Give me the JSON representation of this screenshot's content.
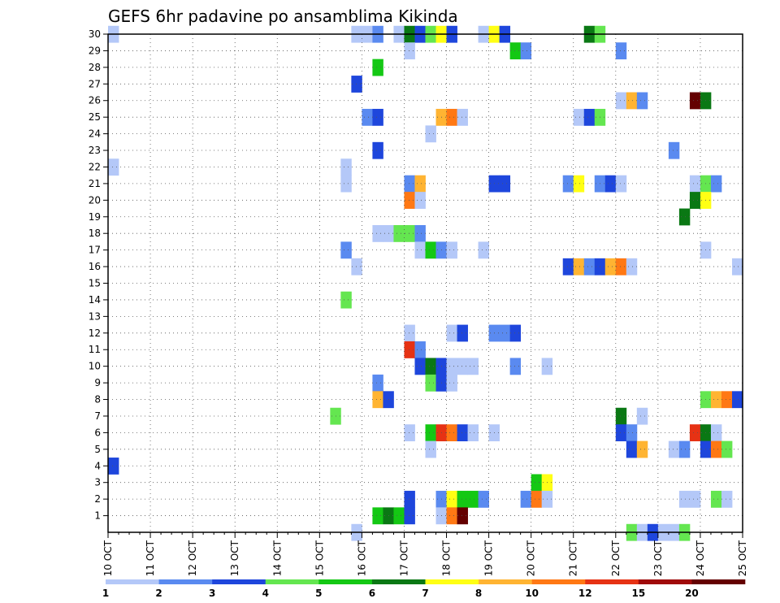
{
  "chart_data": {
    "type": "heatmap",
    "title": "GEFS 6hr padavine po ansamblima Kikinda",
    "x_tick_labels": [
      "10 OCT",
      "11 OCT",
      "12 OCT",
      "13 OCT",
      "14 OCT",
      "15 OCT",
      "16 OCT",
      "17 OCT",
      "18 OCT",
      "19 OCT",
      "20 OCT",
      "21 OCT",
      "22 OCT",
      "23 OCT",
      "24 OCT",
      "25 OCT"
    ],
    "y_tick_labels": [
      "1",
      "2",
      "3",
      "4",
      "5",
      "6",
      "7",
      "8",
      "9",
      "10",
      "11",
      "12",
      "13",
      "14",
      "15",
      "16",
      "17",
      "18",
      "19",
      "20",
      "21",
      "22",
      "23",
      "24",
      "25",
      "26",
      "27",
      "28",
      "29",
      "30"
    ],
    "ylim": [
      0,
      30
    ],
    "grid": true,
    "time_steps_per_day": 4,
    "colorbar": {
      "labels": [
        "1",
        "2",
        "3",
        "4",
        "5",
        "6",
        "7",
        "8",
        "10",
        "12",
        "15",
        "20"
      ],
      "colors": [
        "#b4c8f8",
        "#5a8af0",
        "#1e46dc",
        "#64e650",
        "#14c814",
        "#0a7814",
        "#ffff14",
        "#ffb432",
        "#ff7814",
        "#e63214",
        "#a00a0a",
        "#640000"
      ]
    },
    "cells": [
      {
        "member": 30,
        "col": 0,
        "lvl": 0
      },
      {
        "member": 30,
        "col": 23,
        "lvl": 0
      },
      {
        "member": 30,
        "col": 24,
        "lvl": 0
      },
      {
        "member": 30,
        "col": 25,
        "lvl": 1
      },
      {
        "member": 30,
        "col": 27,
        "lvl": 0
      },
      {
        "member": 30,
        "col": 28,
        "lvl": 5
      },
      {
        "member": 30,
        "col": 29,
        "lvl": 2
      },
      {
        "member": 30,
        "col": 30,
        "lvl": 3
      },
      {
        "member": 30,
        "col": 31,
        "lvl": 6
      },
      {
        "member": 30,
        "col": 32,
        "lvl": 2
      },
      {
        "member": 30,
        "col": 35,
        "lvl": 0
      },
      {
        "member": 30,
        "col": 36,
        "lvl": 6
      },
      {
        "member": 30,
        "col": 37,
        "lvl": 2
      },
      {
        "member": 30,
        "col": 45,
        "lvl": 5
      },
      {
        "member": 30,
        "col": 46,
        "lvl": 3
      },
      {
        "member": 29,
        "col": 28,
        "lvl": 0
      },
      {
        "member": 29,
        "col": 38,
        "lvl": 4
      },
      {
        "member": 29,
        "col": 39,
        "lvl": 1
      },
      {
        "member": 29,
        "col": 48,
        "lvl": 1
      },
      {
        "member": 28,
        "col": 25,
        "lvl": 4
      },
      {
        "member": 27,
        "col": 23,
        "lvl": 2
      },
      {
        "member": 26,
        "col": 48,
        "lvl": 0
      },
      {
        "member": 26,
        "col": 49,
        "lvl": 7
      },
      {
        "member": 26,
        "col": 50,
        "lvl": 1
      },
      {
        "member": 26,
        "col": 55,
        "lvl": 11
      },
      {
        "member": 26,
        "col": 56,
        "lvl": 5
      },
      {
        "member": 25,
        "col": 24,
        "lvl": 1
      },
      {
        "member": 25,
        "col": 25,
        "lvl": 2
      },
      {
        "member": 25,
        "col": 31,
        "lvl": 7
      },
      {
        "member": 25,
        "col": 32,
        "lvl": 8
      },
      {
        "member": 25,
        "col": 33,
        "lvl": 0
      },
      {
        "member": 25,
        "col": 44,
        "lvl": 0
      },
      {
        "member": 25,
        "col": 45,
        "lvl": 2
      },
      {
        "member": 25,
        "col": 46,
        "lvl": 3
      },
      {
        "member": 24,
        "col": 30,
        "lvl": 0
      },
      {
        "member": 23,
        "col": 25,
        "lvl": 2
      },
      {
        "member": 23,
        "col": 53,
        "lvl": 1
      },
      {
        "member": 22,
        "col": 0,
        "lvl": 0
      },
      {
        "member": 22,
        "col": 22,
        "lvl": 0
      },
      {
        "member": 21,
        "col": 22,
        "lvl": 0
      },
      {
        "member": 21,
        "col": 28,
        "lvl": 1
      },
      {
        "member": 21,
        "col": 29,
        "lvl": 7
      },
      {
        "member": 21,
        "col": 36,
        "lvl": 2
      },
      {
        "member": 21,
        "col": 37,
        "lvl": 2
      },
      {
        "member": 21,
        "col": 43,
        "lvl": 1
      },
      {
        "member": 21,
        "col": 44,
        "lvl": 6
      },
      {
        "member": 21,
        "col": 46,
        "lvl": 1
      },
      {
        "member": 21,
        "col": 47,
        "lvl": 2
      },
      {
        "member": 21,
        "col": 48,
        "lvl": 0
      },
      {
        "member": 21,
        "col": 55,
        "lvl": 0
      },
      {
        "member": 21,
        "col": 56,
        "lvl": 3
      },
      {
        "member": 21,
        "col": 57,
        "lvl": 1
      },
      {
        "member": 20,
        "col": 28,
        "lvl": 8
      },
      {
        "member": 20,
        "col": 29,
        "lvl": 0
      },
      {
        "member": 20,
        "col": 55,
        "lvl": 5
      },
      {
        "member": 20,
        "col": 56,
        "lvl": 6
      },
      {
        "member": 19,
        "col": 54,
        "lvl": 5
      },
      {
        "member": 18,
        "col": 25,
        "lvl": 0
      },
      {
        "member": 18,
        "col": 26,
        "lvl": 0
      },
      {
        "member": 18,
        "col": 27,
        "lvl": 3
      },
      {
        "member": 18,
        "col": 28,
        "lvl": 3
      },
      {
        "member": 18,
        "col": 29,
        "lvl": 1
      },
      {
        "member": 17,
        "col": 22,
        "lvl": 1
      },
      {
        "member": 17,
        "col": 29,
        "lvl": 0
      },
      {
        "member": 17,
        "col": 30,
        "lvl": 4
      },
      {
        "member": 17,
        "col": 31,
        "lvl": 1
      },
      {
        "member": 17,
        "col": 32,
        "lvl": 0
      },
      {
        "member": 17,
        "col": 35,
        "lvl": 0
      },
      {
        "member": 17,
        "col": 56,
        "lvl": 0
      },
      {
        "member": 16,
        "col": 23,
        "lvl": 0
      },
      {
        "member": 16,
        "col": 43,
        "lvl": 2
      },
      {
        "member": 16,
        "col": 44,
        "lvl": 7
      },
      {
        "member": 16,
        "col": 45,
        "lvl": 1
      },
      {
        "member": 16,
        "col": 46,
        "lvl": 2
      },
      {
        "member": 16,
        "col": 47,
        "lvl": 7
      },
      {
        "member": 16,
        "col": 48,
        "lvl": 8
      },
      {
        "member": 16,
        "col": 49,
        "lvl": 0
      },
      {
        "member": 16,
        "col": 59,
        "lvl": 0
      },
      {
        "member": 14,
        "col": 22,
        "lvl": 3
      },
      {
        "member": 12,
        "col": 28,
        "lvl": 0
      },
      {
        "member": 12,
        "col": 32,
        "lvl": 0
      },
      {
        "member": 12,
        "col": 33,
        "lvl": 2
      },
      {
        "member": 12,
        "col": 36,
        "lvl": 1
      },
      {
        "member": 12,
        "col": 37,
        "lvl": 1
      },
      {
        "member": 12,
        "col": 38,
        "lvl": 2
      },
      {
        "member": 11,
        "col": 28,
        "lvl": 9
      },
      {
        "member": 11,
        "col": 29,
        "lvl": 1
      },
      {
        "member": 10,
        "col": 29,
        "lvl": 2
      },
      {
        "member": 10,
        "col": 30,
        "lvl": 5
      },
      {
        "member": 10,
        "col": 31,
        "lvl": 2
      },
      {
        "member": 10,
        "col": 32,
        "lvl": 0
      },
      {
        "member": 10,
        "col": 33,
        "lvl": 0
      },
      {
        "member": 10,
        "col": 34,
        "lvl": 0
      },
      {
        "member": 10,
        "col": 38,
        "lvl": 1
      },
      {
        "member": 10,
        "col": 41,
        "lvl": 0
      },
      {
        "member": 9,
        "col": 25,
        "lvl": 1
      },
      {
        "member": 9,
        "col": 30,
        "lvl": 3
      },
      {
        "member": 9,
        "col": 31,
        "lvl": 2
      },
      {
        "member": 9,
        "col": 32,
        "lvl": 0
      },
      {
        "member": 8,
        "col": 25,
        "lvl": 7
      },
      {
        "member": 8,
        "col": 26,
        "lvl": 2
      },
      {
        "member": 8,
        "col": 56,
        "lvl": 3
      },
      {
        "member": 8,
        "col": 57,
        "lvl": 7
      },
      {
        "member": 8,
        "col": 58,
        "lvl": 8
      },
      {
        "member": 8,
        "col": 59,
        "lvl": 2
      },
      {
        "member": 7,
        "col": 21,
        "lvl": 3
      },
      {
        "member": 7,
        "col": 48,
        "lvl": 5
      },
      {
        "member": 7,
        "col": 50,
        "lvl": 0
      },
      {
        "member": 6,
        "col": 28,
        "lvl": 0
      },
      {
        "member": 6,
        "col": 30,
        "lvl": 4
      },
      {
        "member": 6,
        "col": 31,
        "lvl": 9
      },
      {
        "member": 6,
        "col": 32,
        "lvl": 8
      },
      {
        "member": 6,
        "col": 33,
        "lvl": 2
      },
      {
        "member": 6,
        "col": 34,
        "lvl": 0
      },
      {
        "member": 6,
        "col": 36,
        "lvl": 0
      },
      {
        "member": 6,
        "col": 48,
        "lvl": 2
      },
      {
        "member": 6,
        "col": 49,
        "lvl": 1
      },
      {
        "member": 6,
        "col": 55,
        "lvl": 9
      },
      {
        "member": 6,
        "col": 56,
        "lvl": 5
      },
      {
        "member": 6,
        "col": 57,
        "lvl": 0
      },
      {
        "member": 5,
        "col": 30,
        "lvl": 0
      },
      {
        "member": 5,
        "col": 49,
        "lvl": 2
      },
      {
        "member": 5,
        "col": 50,
        "lvl": 7
      },
      {
        "member": 5,
        "col": 53,
        "lvl": 0
      },
      {
        "member": 5,
        "col": 54,
        "lvl": 1
      },
      {
        "member": 5,
        "col": 56,
        "lvl": 2
      },
      {
        "member": 5,
        "col": 57,
        "lvl": 8
      },
      {
        "member": 5,
        "col": 58,
        "lvl": 3
      },
      {
        "member": 4,
        "col": 0,
        "lvl": 2
      },
      {
        "member": 3,
        "col": 40,
        "lvl": 4
      },
      {
        "member": 3,
        "col": 41,
        "lvl": 6
      },
      {
        "member": 2,
        "col": 28,
        "lvl": 2
      },
      {
        "member": 2,
        "col": 31,
        "lvl": 1
      },
      {
        "member": 2,
        "col": 32,
        "lvl": 6
      },
      {
        "member": 2,
        "col": 33,
        "lvl": 4
      },
      {
        "member": 2,
        "col": 34,
        "lvl": 4
      },
      {
        "member": 2,
        "col": 35,
        "lvl": 1
      },
      {
        "member": 2,
        "col": 39,
        "lvl": 1
      },
      {
        "member": 2,
        "col": 40,
        "lvl": 8
      },
      {
        "member": 2,
        "col": 41,
        "lvl": 0
      },
      {
        "member": 2,
        "col": 54,
        "lvl": 0
      },
      {
        "member": 2,
        "col": 55,
        "lvl": 0
      },
      {
        "member": 2,
        "col": 57,
        "lvl": 3
      },
      {
        "member": 2,
        "col": 58,
        "lvl": 0
      },
      {
        "member": 1,
        "col": 25,
        "lvl": 4
      },
      {
        "member": 1,
        "col": 26,
        "lvl": 5
      },
      {
        "member": 1,
        "col": 27,
        "lvl": 4
      },
      {
        "member": 1,
        "col": 28,
        "lvl": 2
      },
      {
        "member": 1,
        "col": 31,
        "lvl": 0
      },
      {
        "member": 1,
        "col": 32,
        "lvl": 8
      },
      {
        "member": 1,
        "col": 33,
        "lvl": 11
      },
      {
        "member": 0,
        "col": 23,
        "lvl": 0
      },
      {
        "member": 0,
        "col": 49,
        "lvl": 3
      },
      {
        "member": 0,
        "col": 50,
        "lvl": 0
      },
      {
        "member": 0,
        "col": 51,
        "lvl": 2
      },
      {
        "member": 0,
        "col": 52,
        "lvl": 0
      },
      {
        "member": 0,
        "col": 53,
        "lvl": 0
      },
      {
        "member": 0,
        "col": 54,
        "lvl": 3
      }
    ]
  }
}
